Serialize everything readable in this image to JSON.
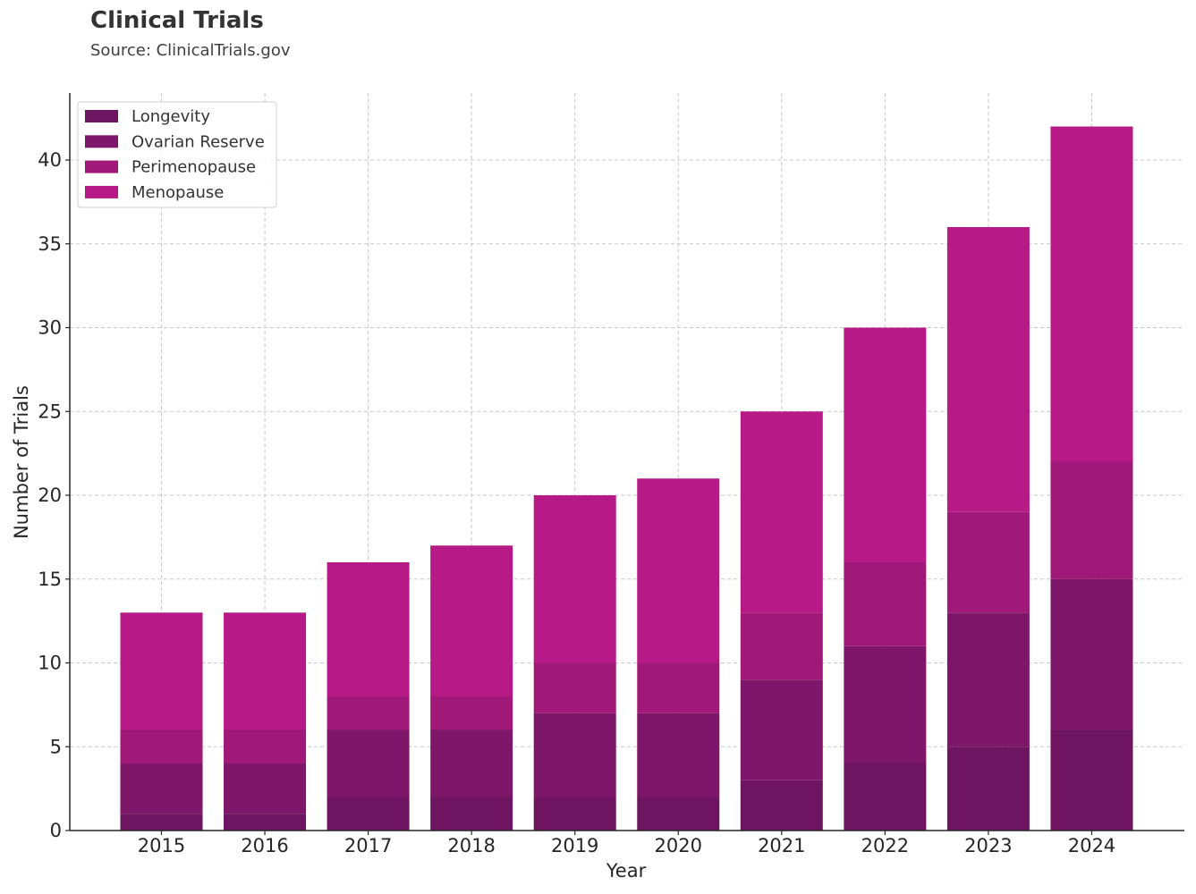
{
  "chart": {
    "title": "Clinical Trials",
    "subtitle": "Source: ClinicalTrials.gov"
  },
  "chart_data": {
    "type": "bar",
    "stacked": true,
    "title": "Clinical Trials",
    "subtitle": "Source: ClinicalTrials.gov",
    "xlabel": "Year",
    "ylabel": "Number of Trials",
    "categories": [
      "2015",
      "2016",
      "2017",
      "2018",
      "2019",
      "2020",
      "2021",
      "2022",
      "2023",
      "2024"
    ],
    "ylim": [
      0,
      44
    ],
    "yticks": [
      0,
      5,
      10,
      15,
      20,
      25,
      30,
      35,
      40
    ],
    "grid": true,
    "legend_position": "top-left",
    "series": [
      {
        "name": "Longevity",
        "color": "#6d1560",
        "values": [
          1,
          1,
          2,
          2,
          2,
          2,
          3,
          4,
          5,
          6
        ]
      },
      {
        "name": "Ovarian Reserve",
        "color": "#7e1669",
        "values": [
          3,
          3,
          4,
          4,
          5,
          5,
          6,
          7,
          8,
          9
        ]
      },
      {
        "name": "Perimenopause",
        "color": "#a01878",
        "values": [
          2,
          2,
          2,
          2,
          3,
          3,
          4,
          5,
          6,
          7
        ]
      },
      {
        "name": "Menopause",
        "color": "#b71a87",
        "values": [
          7,
          7,
          8,
          9,
          10,
          11,
          12,
          14,
          17,
          20
        ]
      }
    ]
  }
}
